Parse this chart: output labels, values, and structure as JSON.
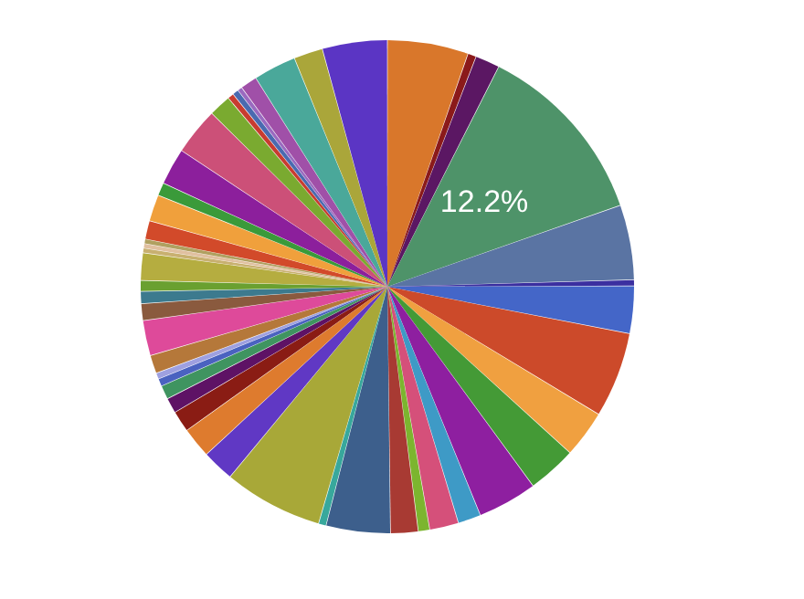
{
  "chart_data": {
    "type": "pie",
    "categories": [
      null,
      null,
      null,
      null,
      null,
      null,
      null,
      null,
      null,
      null,
      null,
      null,
      null,
      null,
      null,
      null,
      null,
      null,
      null,
      null,
      null,
      null,
      null,
      null,
      null,
      null,
      null,
      null,
      null,
      null,
      null,
      null,
      null,
      null,
      null,
      null,
      null,
      null,
      null,
      null,
      null,
      null,
      null,
      null,
      null,
      null,
      null
    ],
    "values": [
      5.3,
      0.55,
      1.6,
      12.2,
      4.9,
      0.4,
      3.1,
      5.6,
      3.1,
      3.2,
      3.9,
      1.5,
      1.9,
      0.75,
      1.8,
      4.2,
      0.5,
      6.5,
      2.1,
      2.0,
      1.4,
      1.0,
      0.9,
      0.5,
      0.4,
      1.2,
      2.3,
      1.1,
      0.8,
      0.7,
      1.8,
      0.3,
      0.3,
      0.3,
      1.2,
      1.75,
      0.85,
      2.4,
      3.1,
      1.45,
      0.4,
      0.4,
      0.3,
      1.1,
      2.8,
      1.9,
      4.25
    ],
    "colors": [
      "#d9772b",
      "#8b1a1a",
      "#5b1763",
      "#4e9369",
      "#5a74a3",
      "#3b2fa0",
      "#4466c8",
      "#cc4a2a",
      "#f0a040",
      "#449a36",
      "#8e1fa0",
      "#3e9ac6",
      "#d5507a",
      "#7cb52f",
      "#a83a33",
      "#3d5f8c",
      "#38a89c",
      "#a8a838",
      "#6038c4",
      "#de7b2e",
      "#8a1c14",
      "#5e1265",
      "#3f9460",
      "#4a62c0",
      "#9ea0e0",
      "#b5783a",
      "#de4a9a",
      "#8a5a3e",
      "#3c7a8e",
      "#6aa030",
      "#b5ad40",
      "#c8b070",
      "#e0c0a0",
      "#b0a060",
      "#d24a2a",
      "#f0a03c",
      "#3a9a3a",
      "#8c1f9c",
      "#cc5078",
      "#7aaa30",
      "#c83c30",
      "#4a6ab0",
      "#9a6ac0",
      "#a050a8",
      "#4aa89a",
      "#aaa63a",
      "#5b35c4"
    ],
    "value_labels": [
      null,
      null,
      null,
      "12.2%",
      null,
      null,
      null,
      null,
      null,
      null,
      null,
      null,
      null,
      null,
      null,
      null,
      null,
      null,
      null,
      null,
      null,
      null,
      null,
      null,
      null,
      null,
      null,
      null,
      null,
      null,
      null,
      null,
      null,
      null,
      null,
      null,
      null,
      null,
      null,
      null,
      null,
      null,
      null,
      null,
      null,
      null,
      null
    ]
  }
}
